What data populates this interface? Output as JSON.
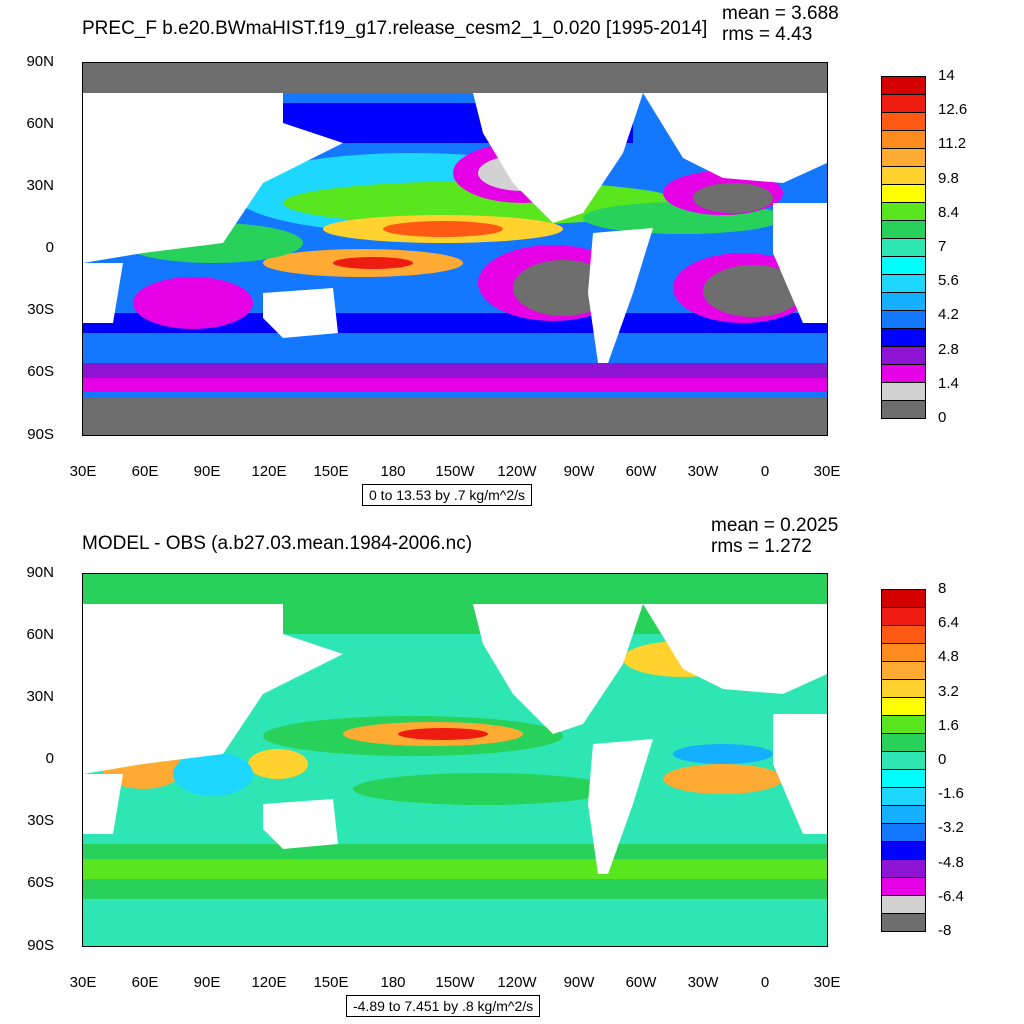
{
  "x_ticks": [
    "30E",
    "60E",
    "90E",
    "120E",
    "150E",
    "180",
    "150W",
    "120W",
    "90W",
    "60W",
    "30W",
    "0",
    "30E"
  ],
  "y_ticks": [
    "90N",
    "60N",
    "30N",
    "0",
    "30S",
    "60S",
    "90S"
  ],
  "colors": {
    "land": "#ffffff",
    "frame": "#000000"
  },
  "panels": [
    {
      "title": "PREC_F b.e20.BWmaHIST.f19_g17.release_cesm2_1_0.020 [1995-2014]",
      "mean": "mean = 3.688",
      "rms": "rms = 4.43",
      "range": "0 to 13.53 by .7 kg/m^2/s",
      "colorbar_labels": [
        "14",
        "12.6",
        "11.2",
        "9.8",
        "8.4",
        "7",
        "5.6",
        "4.2",
        "2.8",
        "1.4",
        "0"
      ],
      "colorbar_colors": [
        "#d40000",
        "#ee1c10",
        "#ff5a14",
        "#ff8c1e",
        "#ffaa32",
        "#ffd22d",
        "#ffff00",
        "#5ae61e",
        "#28d25a",
        "#2ee6b4",
        "#00ffff",
        "#1ed7ff",
        "#14afff",
        "#1478ff",
        "#0000ff",
        "#8c14d2",
        "#e600e6",
        "#d2d2d2",
        "#6e6e6e"
      ]
    },
    {
      "title": "MODEL - OBS (a.b27.03.mean.1984-2006.nc)",
      "mean": "mean = 0.2025",
      "rms": "rms = 1.272",
      "range": "-4.89 to 7.451 by .8 kg/m^2/s",
      "colorbar_labels": [
        "8",
        "6.4",
        "4.8",
        "3.2",
        "1.6",
        "0",
        "-1.6",
        "-3.2",
        "-4.8",
        "-6.4",
        "-8"
      ],
      "colorbar_colors": [
        "#d40000",
        "#ee1c10",
        "#ff5a14",
        "#ff8c1e",
        "#ffaa32",
        "#ffd22d",
        "#ffff00",
        "#5ae61e",
        "#28d25a",
        "#2ee6b4",
        "#00ffff",
        "#1ed7ff",
        "#14afff",
        "#1478ff",
        "#0000ff",
        "#8c14d2",
        "#e600e6",
        "#d2d2d2",
        "#6e6e6e"
      ]
    }
  ]
}
